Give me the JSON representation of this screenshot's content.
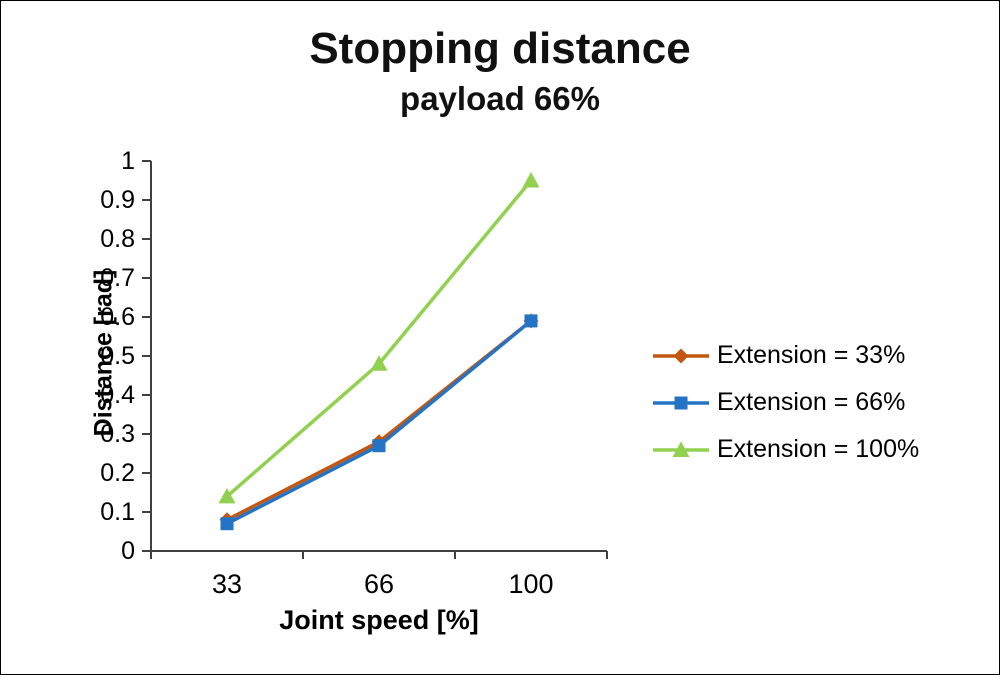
{
  "title": "Stopping distance",
  "subtitle": "payload 66%",
  "chart_data": {
    "type": "line",
    "title": "Stopping distance",
    "subtitle": "payload 66%",
    "xlabel": "Joint speed [%]",
    "ylabel": "Distance [rad]",
    "categories": [
      "33",
      "66",
      "100"
    ],
    "series": [
      {
        "name": "Extension = 33%",
        "values": [
          0.08,
          0.28,
          0.59
        ],
        "color": "#C4560F",
        "marker": "diamond"
      },
      {
        "name": "Extension = 66%",
        "values": [
          0.07,
          0.27,
          0.59
        ],
        "color": "#2473C5",
        "marker": "square"
      },
      {
        "name": "Extension = 100%",
        "values": [
          0.14,
          0.48,
          0.95
        ],
        "color": "#92D050",
        "marker": "triangle"
      }
    ],
    "ylim": [
      0,
      1
    ],
    "y_tick_step": 0.1,
    "y_tick_labels": [
      "0",
      "0.1",
      "0.2",
      "0.3",
      "0.4",
      "0.5",
      "0.6",
      "0.7",
      "0.8",
      "0.9",
      "1"
    ],
    "grid": false,
    "legend_position": "right"
  }
}
